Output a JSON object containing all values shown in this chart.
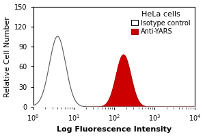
{
  "title": "HeLa cells",
  "xlabel": "Log Fluorescence Intensity",
  "ylabel": "Relative Cell Number",
  "xlim_log": [
    1,
    10000
  ],
  "ylim": [
    0,
    150
  ],
  "yticks": [
    0,
    30,
    60,
    90,
    120,
    150
  ],
  "xtick_vals": [
    1,
    10,
    100,
    1000,
    10000
  ],
  "isotype_peak_x": 4.0,
  "isotype_peak_y": 105,
  "isotype_sigma": 0.2,
  "antiyars_peak_x": 170,
  "antiyars_peak_y": 78,
  "antiyars_sigma": 0.18,
  "isotype_color": "#555555",
  "antiyars_color": "#aa0000",
  "antiyars_fill": "#cc0000",
  "legend_title": "HeLa cells",
  "legend_entries": [
    "Isotype control",
    "Anti-YARS"
  ],
  "background_color": "#ffffff",
  "title_fontsize": 8,
  "label_fontsize": 8,
  "tick_fontsize": 7
}
